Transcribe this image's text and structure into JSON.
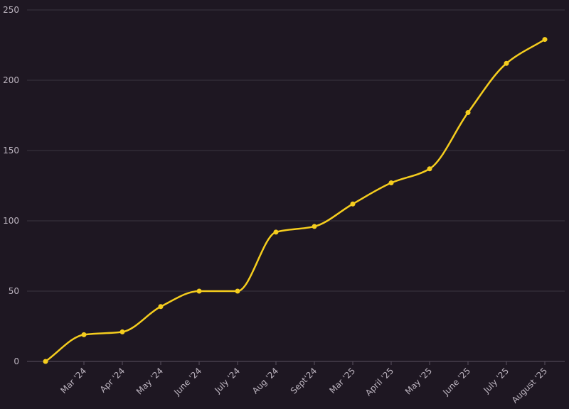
{
  "chart_data": {
    "type": "line",
    "categories": [
      "",
      "Mar '24",
      "Apr '24",
      "May '24",
      "June '24",
      "July '24",
      "Aug '24",
      "Sept'24",
      "Mar '25",
      "April '25",
      "May '25",
      "June '25",
      "July '25",
      "August '25"
    ],
    "series": [
      {
        "values": [
          0,
          19,
          21,
          39,
          50,
          50,
          92,
          96,
          112,
          127,
          137,
          177,
          212,
          229
        ],
        "color": "#f5cd1e"
      }
    ],
    "ylim": [
      0,
      250
    ],
    "yticks": [
      0,
      50,
      100,
      150,
      200,
      250
    ],
    "grid": true,
    "legend": "none",
    "title": "",
    "xlabel": "",
    "ylabel": ""
  }
}
